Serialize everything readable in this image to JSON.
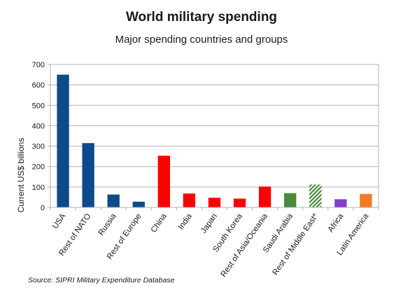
{
  "chart_data": {
    "type": "bar",
    "title": "World military spending",
    "subtitle": "Major spending countries and groups",
    "ylabel": "Current US$ billions",
    "xlabel": "",
    "ylim": [
      0,
      700
    ],
    "yticks": [
      0,
      100,
      200,
      300,
      400,
      500,
      600,
      700
    ],
    "grid": true,
    "legend": "none",
    "categories": [
      "USA",
      "Rest of NATO",
      "Russia",
      "Rest of Europe",
      "China",
      "India",
      "Japan",
      "South Korea",
      "Rest of Asia/Oceania",
      "Saudi Arabia",
      "Rest of Middle East*",
      "Africa",
      "Latin America"
    ],
    "values": [
      650,
      315,
      63,
      28,
      253,
      68,
      47,
      43,
      102,
      70,
      112,
      40,
      66
    ],
    "colors": [
      "#0e4a8a",
      "#0e4a8a",
      "#0e4a8a",
      "#0e4a8a",
      "#ff0000",
      "#ff0000",
      "#ff0000",
      "#ff0000",
      "#ff0000",
      "#4a8a3c",
      "#4a8a3c",
      "#8040c8",
      "#f47b20"
    ],
    "hatched": [
      false,
      false,
      false,
      false,
      false,
      false,
      false,
      false,
      false,
      false,
      true,
      false,
      false
    ],
    "source": "Source: SIPRI Military Expenditure Database"
  }
}
